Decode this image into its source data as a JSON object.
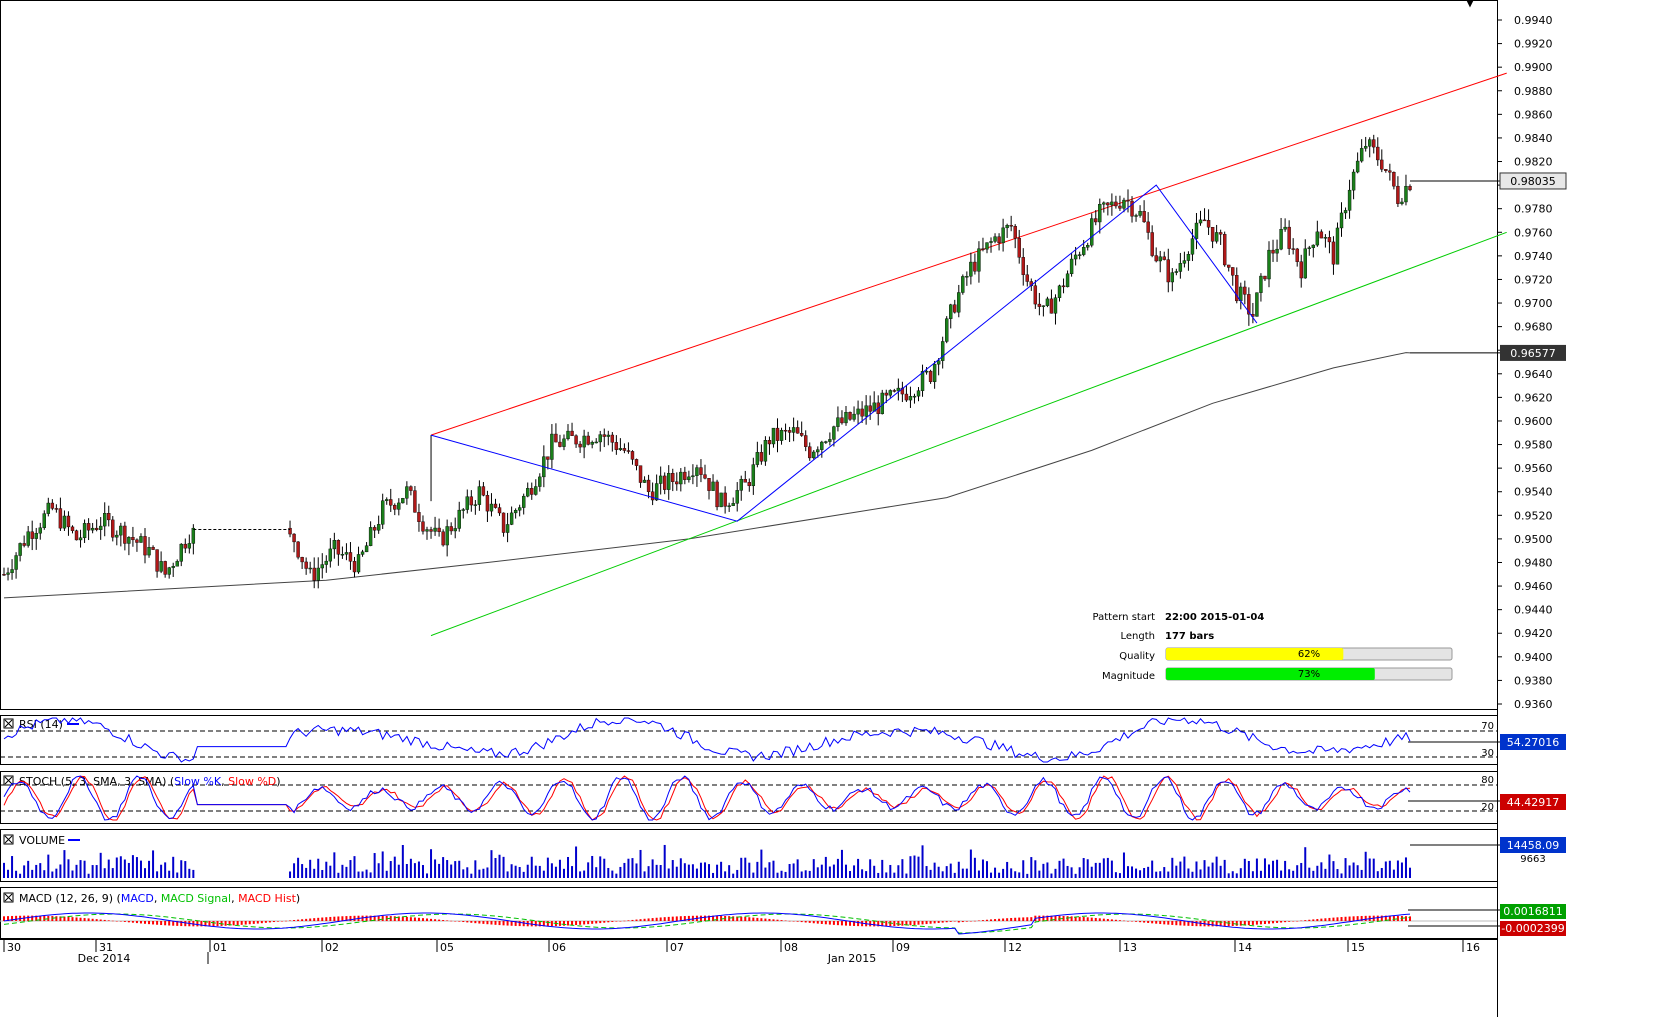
{
  "instrument_marker": "▼",
  "price_axis": {
    "ticks": [
      "0.9940",
      "0.9920",
      "0.9900",
      "0.9880",
      "0.9860",
      "0.9840",
      "0.9820",
      "0.9800",
      "0.9780",
      "0.9760",
      "0.9740",
      "0.9720",
      "0.9700",
      "0.9680",
      "0.9660",
      "0.9640",
      "0.9620",
      "0.9600",
      "0.9580",
      "0.9560",
      "0.9540",
      "0.9520",
      "0.9500",
      "0.9480",
      "0.9460",
      "0.9440",
      "0.9420",
      "0.9400",
      "0.9380",
      "0.9360"
    ],
    "current_price_label": "0.98035",
    "ma_label": "0.96577"
  },
  "pattern_info": {
    "start_label": "Pattern start",
    "start_value": "22:00 2015-01-04",
    "length_label": "Length",
    "length_value": "177 bars",
    "quality_label": "Quality",
    "quality_value": "62%",
    "quality_fraction": 0.62,
    "magnitude_label": "Magnitude",
    "magnitude_value": "73%",
    "magnitude_fraction": 0.73
  },
  "indicators": {
    "rsi": {
      "title": "RSI (14)",
      "level_high": "70",
      "level_low": "30",
      "value": "54.27016"
    },
    "stoch": {
      "title_prefix": "STOCH (5, 3, SMA, 3, SMA) (",
      "title_k": "Slow %K",
      "title_sep": ", ",
      "title_d": "Slow %D",
      "title_suffix": ")",
      "level_high": "80",
      "level_low": "20",
      "value": "44.42917"
    },
    "volume": {
      "title": "VOLUME",
      "value": "14458.09",
      "second_value": "9663"
    },
    "macd": {
      "title_prefix": "MACD (12, 26, 9) (",
      "title_macd": "MACD",
      "title_sep1": ", ",
      "title_signal": "MACD Signal",
      "title_sep2": ", ",
      "title_hist": "MACD Hist",
      "title_suffix": ")",
      "value_main": "0.0016811",
      "value_hist": "-0.0002399"
    }
  },
  "time_axis": {
    "day_labels": [
      "30",
      "31",
      "01",
      "02",
      "05",
      "06",
      "07",
      "08",
      "09",
      "12",
      "13",
      "14",
      "15",
      "16"
    ],
    "month_labels": [
      "Dec 2014",
      "Jan 2015"
    ]
  },
  "colors": {
    "resistance": "#ff0000",
    "support": "#00cc00",
    "zigzag": "#0000ff",
    "moving_average": "#444444",
    "candle_up": "#1a7f1a",
    "candle_down": "#b01818",
    "quality_fill": "#ffff00",
    "magnitude_fill": "#00ee00",
    "macd_line": "#0000ff",
    "macd_signal": "#00c000",
    "macd_hist": "#ff0000",
    "price_badge_bg": "#333333",
    "indicator_badge_bg": "#0033cc",
    "macd_badge_bg": "#00a000",
    "macd_hist_badge_bg": "#cc0000"
  },
  "chart_data": {
    "type": "candlestick",
    "y_range": [
      0.935,
      0.995
    ],
    "anchor_points": [
      [
        0,
        0.947
      ],
      [
        6,
        0.9505
      ],
      [
        12,
        0.9525
      ],
      [
        18,
        0.95
      ],
      [
        24,
        0.9515
      ],
      [
        30,
        0.9505
      ],
      [
        36,
        0.949
      ],
      [
        40,
        0.947
      ],
      [
        46,
        0.9505
      ],
      [
        72,
        0.95
      ],
      [
        76,
        0.9468
      ],
      [
        82,
        0.949
      ],
      [
        88,
        0.9478
      ],
      [
        94,
        0.9525
      ],
      [
        100,
        0.954
      ],
      [
        104,
        0.9515
      ],
      [
        108,
        0.9498
      ],
      [
        112,
        0.9515
      ],
      [
        118,
        0.954
      ],
      [
        124,
        0.951
      ],
      [
        130,
        0.954
      ],
      [
        136,
        0.958
      ],
      [
        142,
        0.9585
      ],
      [
        148,
        0.959
      ],
      [
        154,
        0.9575
      ],
      [
        160,
        0.954
      ],
      [
        166,
        0.955
      ],
      [
        172,
        0.9565
      ],
      [
        178,
        0.953
      ],
      [
        184,
        0.9545
      ],
      [
        190,
        0.9585
      ],
      [
        196,
        0.959
      ],
      [
        200,
        0.9575
      ],
      [
        206,
        0.9595
      ],
      [
        212,
        0.9605
      ],
      [
        218,
        0.9615
      ],
      [
        224,
        0.9625
      ],
      [
        230,
        0.964
      ],
      [
        236,
        0.97
      ],
      [
        240,
        0.973
      ],
      [
        246,
        0.9755
      ],
      [
        250,
        0.9765
      ],
      [
        254,
        0.972
      ],
      [
        258,
        0.969
      ],
      [
        262,
        0.971
      ],
      [
        266,
        0.974
      ],
      [
        272,
        0.9775
      ],
      [
        278,
        0.979
      ],
      [
        282,
        0.9775
      ],
      [
        286,
        0.974
      ],
      [
        290,
        0.972
      ],
      [
        294,
        0.975
      ],
      [
        298,
        0.977
      ],
      [
        302,
        0.975
      ],
      [
        306,
        0.971
      ],
      [
        310,
        0.969
      ],
      [
        314,
        0.974
      ],
      [
        318,
        0.976
      ],
      [
        322,
        0.973
      ],
      [
        326,
        0.9765
      ],
      [
        330,
        0.974
      ],
      [
        334,
        0.98
      ],
      [
        338,
        0.9835
      ],
      [
        342,
        0.982
      ],
      [
        346,
        0.979
      ],
      [
        349,
        0.9803
      ]
    ],
    "series": {
      "resistance": [
        [
          106,
          0.9588
        ],
        [
          373,
          0.9895
        ]
      ],
      "support": [
        [
          106,
          0.9418
        ],
        [
          373,
          0.976
        ]
      ],
      "zigzag": [
        [
          106,
          0.9588
        ],
        [
          182,
          0.9515
        ],
        [
          286,
          0.98
        ],
        [
          311,
          0.9683
        ]
      ],
      "moving_average": [
        [
          0,
          0.945
        ],
        [
          80,
          0.9465
        ],
        [
          120,
          0.948
        ],
        [
          170,
          0.95
        ],
        [
          234,
          0.9535
        ],
        [
          270,
          0.9575
        ],
        [
          300,
          0.9615
        ],
        [
          330,
          0.9645
        ],
        [
          348,
          0.9658
        ],
        [
          349,
          0.96577
        ]
      ]
    },
    "last_price": 0.98035,
    "last_ma": 0.96577
  }
}
